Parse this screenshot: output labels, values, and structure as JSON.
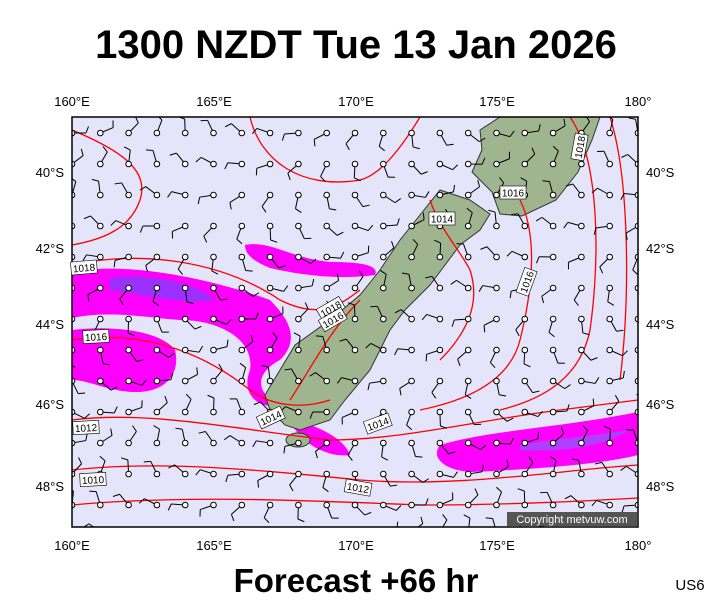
{
  "header": {
    "title": "1300 NZDT Tue 13 Jan 2026"
  },
  "map": {
    "longitude_labels": [
      "160°E",
      "165°E",
      "170°E",
      "175°E",
      "180°"
    ],
    "latitude_labels": [
      "40°S",
      "42°S",
      "44°S",
      "46°S",
      "48°S"
    ],
    "isobar_labels": [
      "1018",
      "1016",
      "1012",
      "1010",
      "1014",
      "1014",
      "1012",
      "1018",
      "1016",
      "1014",
      "1016",
      "1016",
      "1018"
    ],
    "copyright": "Copyright metvuw.com"
  },
  "footer": {
    "forecast": "Forecast +66 hr",
    "code": "US6"
  }
}
